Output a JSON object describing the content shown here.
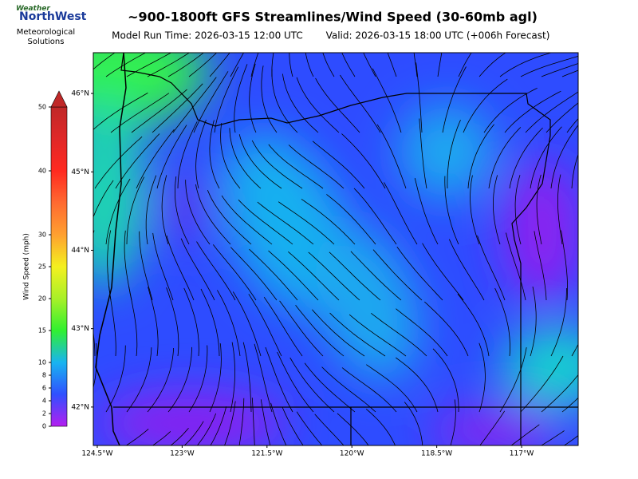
{
  "header": {
    "title": "~900-1800ft GFS Streamlines/Wind Speed (30-60mb agl)",
    "run": "Model Run Time: 2026-03-15 12:00 UTC",
    "valid": "Valid: 2026-03-15 18:00 UTC  (+006h Forecast)"
  },
  "logo": {
    "top": "Weather",
    "name": "NorthWest",
    "caption": "Meteorological Solutions"
  },
  "chart_data": {
    "type": "map",
    "xlim": [
      -124.57,
      -116.0
    ],
    "ylim": [
      41.51,
      46.52
    ],
    "xticks": [
      {
        "value": -124.5,
        "label": "124.5°W"
      },
      {
        "value": -123,
        "label": "123°W"
      },
      {
        "value": -121.5,
        "label": "121.5°W"
      },
      {
        "value": -120,
        "label": "120°W"
      },
      {
        "value": -118.5,
        "label": "118.5°W"
      },
      {
        "value": -117,
        "label": "117°W"
      }
    ],
    "yticks": [
      {
        "value": 46,
        "label": "46°N"
      },
      {
        "value": 45,
        "label": "45°N"
      },
      {
        "value": 44,
        "label": "44°N"
      },
      {
        "value": 43,
        "label": "43°N"
      },
      {
        "value": 42,
        "label": "42°N"
      }
    ],
    "colorbar": {
      "label": "Wind Speed (mph)",
      "lim": [
        0,
        50
      ],
      "ticks": [
        0,
        2,
        4,
        6,
        8,
        10,
        15,
        20,
        25,
        30,
        40,
        50
      ],
      "colors": [
        "#b41ef0",
        "#3050ff",
        "#18b4f0",
        "#30f030",
        "#a8f028",
        "#f4f020",
        "#ffa030",
        "#ff6a30",
        "#ff2a20",
        "#e02828",
        "#c02828"
      ]
    }
  }
}
